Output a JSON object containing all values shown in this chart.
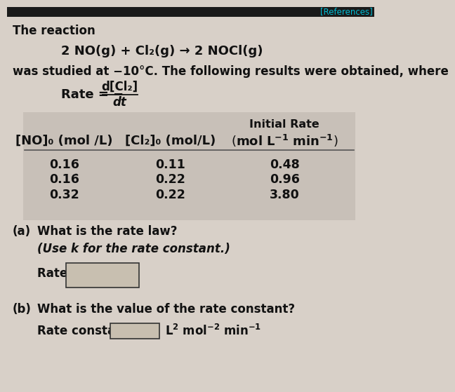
{
  "bg_color": "#d8d0c8",
  "table_bg": "#c8c0b8",
  "white_bg": "#d8d0c8",
  "header_bar_color": "#1a1a1a",
  "references_text": "[References]",
  "references_color": "#00bcd4",
  "intro_text": "The reaction",
  "reaction": "2 NO(g) + Cl₂(g) → 2 NOCl(g)",
  "studied_text": "was studied at −10°C. The following results were obtained, where",
  "rate_numerator": "d[Cl₂]",
  "rate_denominator": "dt",
  "col_header_1": "[NO]₀ (mol /L)",
  "col_header_2": "[Cl₂]₀ (mol/L)",
  "col_header_3_top": "Initial Rate",
  "table_data": [
    [
      "0.16",
      "0.11",
      "0.48"
    ],
    [
      "0.16̇",
      "0.22",
      "0.96"
    ],
    [
      "0.32",
      "0.22",
      "3.80"
    ]
  ],
  "part_a_label": "(a)",
  "part_a_text": "What is the rate law?",
  "part_a_italic": "(Use k for the rate constant.)",
  "rate_eq_label": "Rate = ",
  "part_b_label": "(b)",
  "part_b_text": "What is the value of the rate constant?",
  "rate_constant_label": "Rate constant = ",
  "text_color": "#111111"
}
